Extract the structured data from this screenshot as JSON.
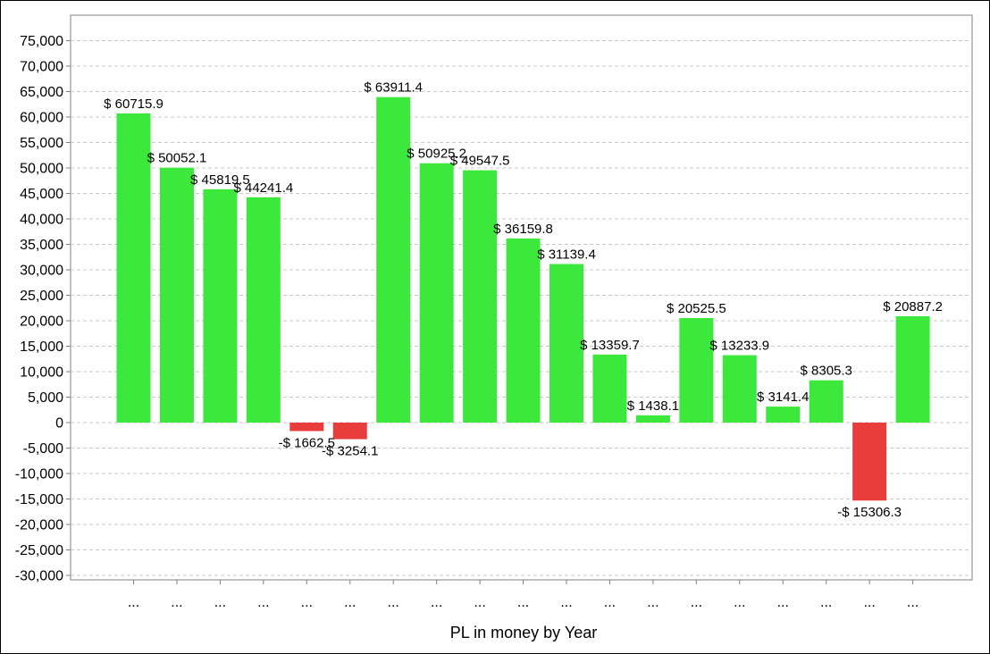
{
  "chart_data": {
    "type": "bar",
    "xlabel": "PL in money by Year",
    "ylabel": "",
    "ylim": [
      -30000,
      75000
    ],
    "yticks": [
      -30000,
      -25000,
      -20000,
      -15000,
      -10000,
      -5000,
      0,
      5000,
      10000,
      15000,
      20000,
      25000,
      30000,
      35000,
      40000,
      45000,
      50000,
      55000,
      60000,
      65000,
      70000,
      75000
    ],
    "grid": true,
    "categories": [
      "...",
      "...",
      "...",
      "...",
      "...",
      "...",
      "...",
      "...",
      "...",
      "...",
      "...",
      "...",
      "...",
      "...",
      "...",
      "...",
      "...",
      "...",
      "..."
    ],
    "values": [
      60715.9,
      50052.1,
      45819.5,
      44241.4,
      -1662.5,
      -3254.1,
      63911.4,
      50925.2,
      49547.5,
      36159.8,
      31139.4,
      13359.7,
      1438.1,
      20525.5,
      13233.9,
      3141.4,
      8305.3,
      -15306.3,
      20887.2
    ],
    "data_labels": [
      "$ 60715.9",
      "$ 50052.1",
      "$ 45819.5",
      "$ 44241.4",
      "-$ 1662.5",
      "-$ 3254.1",
      "$ 63911.4",
      "$ 50925.2",
      "$ 49547.5",
      "$ 36159.8",
      "$ 31139.4",
      "$ 13359.7",
      "$ 1438.1",
      "$ 20525.5",
      "$ 13233.9",
      "$ 3141.4",
      "$ 8305.3",
      "-$ 15306.3",
      "$ 20887.2"
    ],
    "colors": {
      "positive": "#3de83d",
      "negative": "#e83d3d",
      "grid": "#c8c8c8",
      "axis": "#808080"
    }
  }
}
